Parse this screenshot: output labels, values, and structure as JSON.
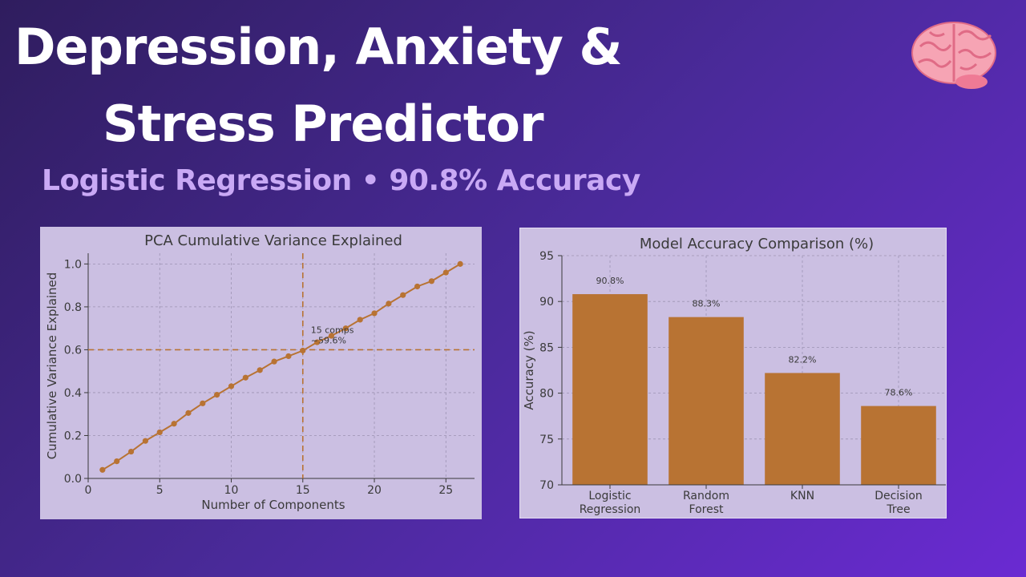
{
  "header": {
    "title_line1": "Depression, Anxiety &",
    "title_line2": "Stress Predictor",
    "subtitle": "Logistic Regression • 90.8% Accuracy",
    "icon": "brain-icon"
  },
  "colors": {
    "accent": "#b87333",
    "panel_bg": "#cbbfe2",
    "subtitle": "#c9a9f5"
  },
  "chart_data": [
    {
      "type": "line",
      "title": "PCA Cumulative Variance Explained",
      "xlabel": "Number of Components",
      "ylabel": "Cumulative Variance Explained",
      "xlim": [
        0,
        27
      ],
      "ylim": [
        0,
        1.05
      ],
      "xticks": [
        0,
        5,
        10,
        15,
        20,
        25
      ],
      "yticks": [
        0.0,
        0.2,
        0.4,
        0.6,
        0.8,
        1.0
      ],
      "ytick_labels": [
        "0.0",
        "0.2",
        "0.4",
        "0.6",
        "0.8",
        "1.0"
      ],
      "grid": true,
      "x": [
        1,
        2,
        3,
        4,
        5,
        6,
        7,
        8,
        9,
        10,
        11,
        12,
        13,
        14,
        15,
        16,
        17,
        18,
        19,
        20,
        21,
        22,
        23,
        24,
        25,
        26
      ],
      "y": [
        0.04,
        0.08,
        0.125,
        0.175,
        0.215,
        0.255,
        0.305,
        0.35,
        0.39,
        0.43,
        0.47,
        0.505,
        0.545,
        0.57,
        0.596,
        0.635,
        0.665,
        0.7,
        0.74,
        0.77,
        0.815,
        0.855,
        0.895,
        0.92,
        0.96,
        1.0
      ],
      "reference_lines": {
        "x": 15,
        "y": 0.6
      },
      "annotation": {
        "line1": "15 comps",
        "line2": "~59.6%"
      }
    },
    {
      "type": "bar",
      "title": "Model Accuracy Comparison (%)",
      "xlabel": "",
      "ylabel": "Accuracy (%)",
      "ylim": [
        70,
        95
      ],
      "yticks": [
        70,
        75,
        80,
        85,
        90,
        95
      ],
      "grid": true,
      "categories": [
        {
          "line1": "Logistic",
          "line2": "Regression"
        },
        {
          "line1": "Random",
          "line2": "Forest"
        },
        {
          "line1": "KNN",
          "line2": ""
        },
        {
          "line1": "Decision",
          "line2": "Tree"
        }
      ],
      "values": [
        90.8,
        88.3,
        82.2,
        78.6
      ],
      "value_labels": [
        "90.8%",
        "88.3%",
        "82.2%",
        "78.6%"
      ]
    }
  ]
}
